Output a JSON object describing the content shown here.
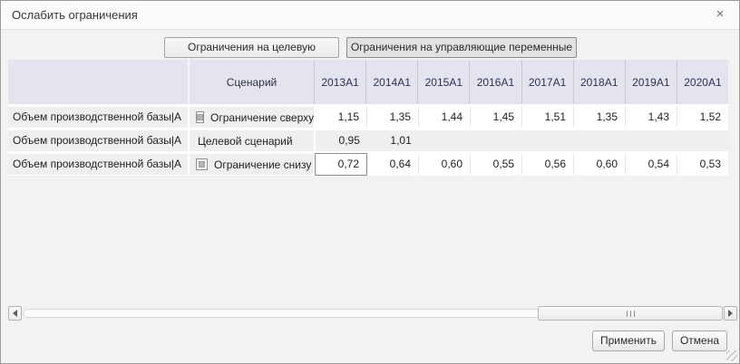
{
  "dialog": {
    "title": "Ослабить ограничения",
    "close": "×"
  },
  "tabs": {
    "objective_label": "Ограничения на целевую функцию",
    "control_label": "Ограничения на управляющие переменные",
    "active_tab": "control"
  },
  "table": {
    "scenario_header": "Сценарий",
    "years": [
      "2013A1",
      "2014A1",
      "2015A1",
      "2016A1",
      "2017A1",
      "2018A1",
      "2019A1",
      "2020A1"
    ],
    "rows": [
      {
        "name": "Объем производственной базы|A",
        "scenario": "Ограничение сверху",
        "checkbox": true,
        "checked": false,
        "values": [
          "1,15",
          "1,35",
          "1,44",
          "1,45",
          "1,51",
          "1,35",
          "1,43",
          "1,52"
        ]
      },
      {
        "name": "Объем производственной базы|A",
        "scenario": "Целевой сценарий",
        "checkbox": false,
        "values": [
          "0,95",
          "1,01",
          "",
          "",
          "",
          "",
          "",
          ""
        ]
      },
      {
        "name": "Объем производственной базы|A",
        "scenario": "Ограничение снизу",
        "checkbox": true,
        "checked": false,
        "values": [
          "0,72",
          "0,64",
          "0,60",
          "0,55",
          "0,56",
          "0,60",
          "0,54",
          "0,53"
        ]
      }
    ],
    "selected_cell": {
      "row_index": 2,
      "col_index": 0,
      "value": "0,72"
    }
  },
  "scrollbar": {
    "orientation": "horizontal"
  },
  "footer": {
    "apply_label": "Применить",
    "cancel_label": "Отмена"
  },
  "colors": {
    "header_bg": "#e4e4ee",
    "row_bg": "#efefef",
    "header_text": "#2e2e5a",
    "dialog_bg": "#f2f2f2",
    "active_tab_bg": "#e2e2e2",
    "selected_cell_border": "#8d8d8d"
  }
}
